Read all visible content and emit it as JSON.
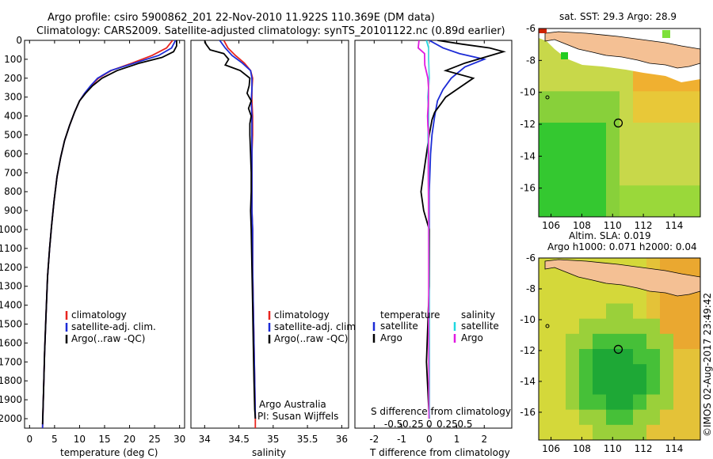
{
  "header": {
    "line1": "Argo profile: csiro 5900862_201 22-Nov-2010 11.922S 110.369E (DM data)",
    "line2": "Climatology: CARS2009. Satellite-adjusted climatology: synTS_20101122.nc (0.89d earlier)"
  },
  "colors": {
    "climatology": "#e8251f",
    "satellite": "#1c2bd6",
    "argo": "#000000",
    "cyan": "#1fd8e0",
    "magenta": "#e019e0",
    "land": "#f4c094"
  },
  "depth_axis": {
    "ylim": [
      0,
      2050
    ],
    "ticks": [
      0,
      100,
      200,
      300,
      400,
      500,
      600,
      700,
      800,
      900,
      1000,
      1100,
      1200,
      1300,
      1400,
      1500,
      1600,
      1700,
      1800,
      1900,
      2000
    ]
  },
  "chart_data": [
    {
      "type": "line",
      "id": "temperature",
      "xlabel": "temperature (deg C)",
      "ylabel": "depth",
      "xlim": [
        -1,
        31
      ],
      "xticks": [
        0,
        5,
        10,
        15,
        20,
        25,
        30
      ],
      "legend": [
        "climatology",
        "satellite-adj. clim.",
        "Argo(..raw -QC)"
      ],
      "series": [
        {
          "name": "climatology",
          "color": "#e8251f",
          "x": [
            28.6,
            27.4,
            24.5,
            20.5,
            16.3,
            13.8,
            12.3,
            11.0,
            10.0,
            9.0,
            8.0,
            7.0,
            6.2,
            5.5,
            4.9,
            4.4,
            4.0,
            3.6,
            3.3,
            3.0,
            2.8,
            2.6
          ],
          "y": [
            0,
            40,
            80,
            120,
            160,
            200,
            240,
            280,
            320,
            380,
            450,
            530,
            620,
            720,
            850,
            980,
            1100,
            1250,
            1450,
            1650,
            1850,
            2050
          ]
        },
        {
          "name": "satellite-adj. clim.",
          "color": "#1c2bd6",
          "x": [
            29.2,
            28.4,
            25.8,
            21.0,
            16.2,
            13.6,
            12.2,
            11.0,
            10.0,
            9.0,
            8.0,
            7.0,
            6.2,
            5.5,
            4.9,
            4.4,
            4.0,
            3.6,
            3.3,
            3.0,
            2.8,
            2.6
          ],
          "y": [
            0,
            40,
            80,
            120,
            160,
            200,
            240,
            280,
            320,
            380,
            450,
            530,
            620,
            720,
            850,
            980,
            1100,
            1250,
            1450,
            1650,
            1850,
            2050
          ]
        },
        {
          "name": "Argo(..raw -QC)",
          "color": "#000000",
          "x": [
            29.4,
            29.4,
            28.8,
            26.5,
            22.0,
            17.5,
            14.5,
            12.6,
            11.2,
            10.0,
            9.0,
            8.0,
            7.0,
            6.2,
            5.5,
            4.9,
            4.4,
            4.0,
            3.6,
            3.3,
            3.0,
            2.8,
            2.6
          ],
          "y": [
            0,
            30,
            60,
            90,
            120,
            160,
            200,
            240,
            280,
            320,
            380,
            450,
            530,
            620,
            720,
            850,
            980,
            1100,
            1250,
            1450,
            1650,
            1850,
            2030
          ]
        }
      ]
    },
    {
      "type": "line",
      "id": "salinity",
      "xlabel": "salinity",
      "ylabel": "depth",
      "xlim": [
        33.8,
        36.1
      ],
      "xticks": [
        34,
        34.5,
        35,
        35.5,
        36
      ],
      "xticklabels": [
        "34",
        "34.5",
        "35",
        "35.5",
        "36"
      ],
      "legend": [
        "climatology",
        "satellite-adj. clim.",
        "Argo(..raw -QC)"
      ],
      "annotation": [
        "Argo Australia",
        "PI: Susan Wijffels"
      ],
      "series": [
        {
          "name": "climatology",
          "color": "#e8251f",
          "x": [
            34.28,
            34.34,
            34.45,
            34.58,
            34.67,
            34.7,
            34.69,
            34.69,
            34.7,
            34.7,
            34.69,
            34.69,
            34.69,
            34.69,
            34.7,
            34.7,
            34.71,
            34.72,
            34.73,
            34.74,
            34.74
          ],
          "y": [
            0,
            40,
            80,
            120,
            160,
            200,
            260,
            320,
            400,
            500,
            600,
            700,
            800,
            900,
            1000,
            1200,
            1400,
            1600,
            1800,
            2000,
            2050
          ]
        },
        {
          "name": "satellite-adj. clim.",
          "color": "#1c2bd6",
          "x": [
            34.22,
            34.3,
            34.4,
            34.55,
            34.67,
            34.69,
            34.69,
            34.68,
            34.69,
            34.69,
            34.69,
            34.69,
            34.69,
            34.69,
            34.7,
            34.7,
            34.71,
            34.72,
            34.73,
            34.74
          ],
          "y": [
            0,
            40,
            80,
            120,
            160,
            200,
            260,
            320,
            400,
            500,
            600,
            700,
            800,
            900,
            1000,
            1200,
            1400,
            1600,
            1800,
            2000
          ]
        },
        {
          "name": "Argo(..raw -QC)",
          "color": "#000000",
          "x": [
            34.0,
            34.02,
            34.08,
            34.28,
            34.35,
            34.3,
            34.52,
            34.66,
            34.65,
            34.62,
            34.68,
            34.64,
            34.68,
            34.66,
            34.66,
            34.67,
            34.68,
            34.68,
            34.67,
            34.68,
            34.69,
            34.7,
            34.71,
            34.72,
            34.73,
            34.74
          ],
          "y": [
            0,
            20,
            50,
            70,
            100,
            130,
            160,
            200,
            240,
            280,
            320,
            360,
            400,
            440,
            500,
            600,
            700,
            800,
            900,
            1000,
            1200,
            1400,
            1600,
            1800,
            1950,
            2000
          ]
        }
      ]
    },
    {
      "type": "line",
      "id": "differences",
      "xlabel": "T difference from climatology",
      "xlabel_top": "S difference from climatology",
      "xlim": [
        -2.7,
        3.0
      ],
      "xticks": [
        -2,
        -1,
        0,
        1,
        2
      ],
      "top_ticks": [
        -0.5,
        -0.25,
        0,
        0.25,
        0.5
      ],
      "top_ticklabels": [
        "-0.5",
        "-0.25",
        "0",
        "0.25",
        "0.5"
      ],
      "legend_temperature_title": "temperature",
      "legend_salinity_title": "salinity",
      "legend": [
        "satellite",
        "Argo",
        "satellite",
        "Argo"
      ],
      "series": [
        {
          "name": "T satellite",
          "color": "#1c2bd6",
          "x": [
            0.0,
            0.5,
            1.1,
            2.0,
            1.3,
            0.8,
            0.5,
            0.3,
            0.2,
            0.1,
            0.05,
            0.0,
            0.0,
            0.0
          ],
          "y": [
            0,
            40,
            70,
            100,
            140,
            200,
            260,
            320,
            400,
            500,
            600,
            800,
            1200,
            2000
          ]
        },
        {
          "name": "T Argo",
          "color": "#000000",
          "x": [
            0.3,
            1.2,
            2.2,
            2.7,
            2.0,
            1.3,
            0.6,
            1.6,
            1.0,
            0.6,
            0.4,
            0.2,
            0.1,
            0.0,
            -0.3,
            -0.2,
            0.0,
            0.0,
            -0.1,
            0.0
          ],
          "y": [
            0,
            20,
            40,
            60,
            90,
            120,
            160,
            200,
            260,
            300,
            340,
            380,
            420,
            500,
            800,
            900,
            1000,
            1300,
            1700,
            2000
          ]
        },
        {
          "name": "S satellite",
          "color": "#1fd8e0",
          "x": [
            -0.1,
            -0.02,
            -0.02,
            0.0,
            -0.05,
            -0.02,
            -0.04,
            -0.03,
            -0.02,
            0.0,
            0.0
          ],
          "y": [
            0,
            40,
            100,
            200,
            300,
            400,
            500,
            700,
            1000,
            1500,
            2000
          ]
        },
        {
          "name": "S Argo",
          "color": "#e019e0",
          "x": [
            -0.37,
            -0.4,
            -0.17,
            -0.16,
            -0.05,
            -0.02,
            -0.03,
            -0.06,
            -0.05,
            -0.02,
            -0.03,
            -0.02,
            -0.02,
            -0.01
          ],
          "y": [
            0,
            40,
            70,
            130,
            200,
            260,
            330,
            400,
            450,
            500,
            700,
            1000,
            1500,
            2000
          ]
        }
      ]
    },
    {
      "type": "heatmap",
      "id": "sst_map",
      "title": "sat. SST: 29.3  Argo: 28.9",
      "xlim": [
        105.2,
        115.7
      ],
      "ylim": [
        -17.8,
        -6
      ],
      "xticks": [
        106,
        108,
        110,
        112,
        114
      ],
      "yticks": [
        -6,
        -8,
        -10,
        -12,
        -14,
        -16
      ],
      "marker": {
        "lon": 110.369,
        "lat": -11.922
      }
    },
    {
      "type": "heatmap",
      "id": "sla_map",
      "title_line1": "Altim. SLA: 0.019",
      "title_line2": "Argo h1000: 0.071  h2000: 0.04",
      "xlim": [
        105.2,
        115.7
      ],
      "ylim": [
        -17.8,
        -6
      ],
      "xticks": [
        106,
        108,
        110,
        112,
        114
      ],
      "yticks": [
        -6,
        -8,
        -10,
        -12,
        -14,
        -16
      ],
      "marker": {
        "lon": 110.369,
        "lat": -11.922
      }
    }
  ],
  "footer": {
    "credit": "©IMOS 02-Aug-2017 23:49:42"
  }
}
